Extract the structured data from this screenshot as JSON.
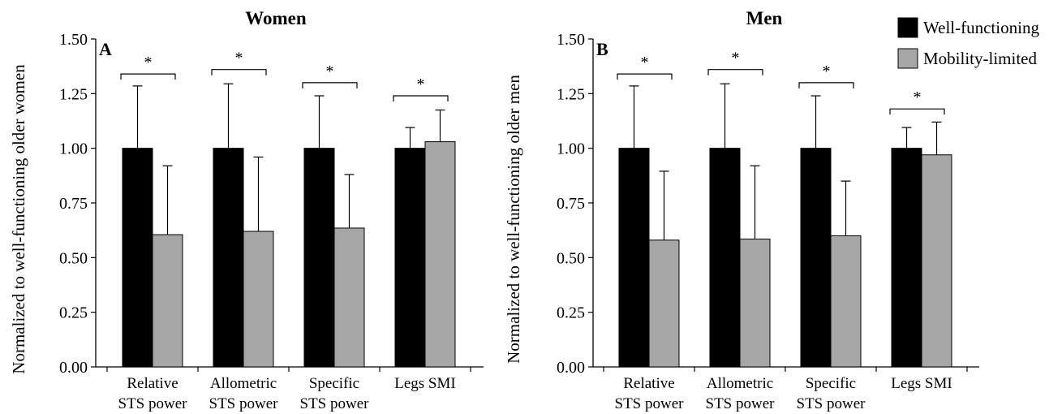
{
  "chart_data": [
    {
      "type": "bar",
      "panel_label": "A",
      "title": "Women",
      "ylabel": "Normalized to well-functioning older women",
      "xlabel": "",
      "ylim": [
        0,
        1.5
      ],
      "yticks": [
        "0.00",
        "0.25",
        "0.50",
        "0.75",
        "1.00",
        "1.25",
        "1.50"
      ],
      "categories": [
        [
          "Relative",
          "STS power"
        ],
        [
          "Allometric",
          "STS power"
        ],
        [
          "Specific",
          "STS power"
        ],
        [
          "Legs SMI"
        ]
      ],
      "series": [
        {
          "name": "Well-functioning",
          "color": "#000000",
          "values": [
            1.0,
            1.0,
            1.0,
            1.0
          ],
          "error_upper": [
            0.285,
            0.295,
            0.24,
            0.095
          ]
        },
        {
          "name": "Mobility-limited",
          "color": "#a6a6a6",
          "values": [
            0.605,
            0.62,
            0.635,
            1.03
          ],
          "error_upper": [
            0.315,
            0.34,
            0.245,
            0.145
          ]
        }
      ],
      "significance": [
        {
          "category": 0,
          "label": "*",
          "y": 1.34
        },
        {
          "category": 1,
          "label": "*",
          "y": 1.36
        },
        {
          "category": 2,
          "label": "*",
          "y": 1.3
        },
        {
          "category": 3,
          "label": "*",
          "y": 1.24
        }
      ]
    },
    {
      "type": "bar",
      "panel_label": "B",
      "title": "Men",
      "ylabel": "Normalized to well-functioning older men",
      "xlabel": "",
      "ylim": [
        0,
        1.5
      ],
      "yticks": [
        "0.00",
        "0.25",
        "0.50",
        "0.75",
        "1.00",
        "1.25",
        "1.50"
      ],
      "categories": [
        [
          "Relative",
          "STS power"
        ],
        [
          "Allometric",
          "STS power"
        ],
        [
          "Specific",
          "STS power"
        ],
        [
          "Legs SMI"
        ]
      ],
      "series": [
        {
          "name": "Well-functioning",
          "color": "#000000",
          "values": [
            1.0,
            1.0,
            1.0,
            1.0
          ],
          "error_upper": [
            0.285,
            0.295,
            0.24,
            0.095
          ]
        },
        {
          "name": "Mobility-limited",
          "color": "#a6a6a6",
          "values": [
            0.58,
            0.585,
            0.6,
            0.97
          ],
          "error_upper": [
            0.315,
            0.335,
            0.25,
            0.15
          ]
        }
      ],
      "significance": [
        {
          "category": 0,
          "label": "*",
          "y": 1.34
        },
        {
          "category": 1,
          "label": "*",
          "y": 1.36
        },
        {
          "category": 2,
          "label": "*",
          "y": 1.3
        },
        {
          "category": 3,
          "label": "*",
          "y": 1.18
        }
      ]
    }
  ],
  "legend": {
    "position": "top-right",
    "items": [
      {
        "label": "Well-functioning",
        "color": "#000000"
      },
      {
        "label": "Mobility-limited",
        "color": "#a6a6a6"
      }
    ]
  }
}
